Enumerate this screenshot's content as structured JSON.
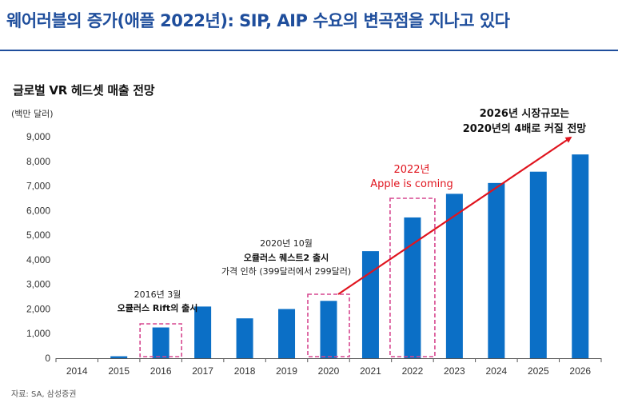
{
  "header": {
    "title": "웨어러블의 증가(애플 2022년): SIP, AIP 수요의 변곡점을 지나고 있다"
  },
  "chart_data": {
    "type": "bar",
    "title": "글로벌 VR 헤드셋 매출 전망",
    "unit": "(백만 달러)",
    "categories": [
      "2014",
      "2015",
      "2016",
      "2017",
      "2018",
      "2019",
      "2020",
      "2021",
      "2022",
      "2023",
      "2024",
      "2025",
      "2026"
    ],
    "values": [
      0,
      80,
      1250,
      2100,
      1620,
      2000,
      2330,
      4350,
      5720,
      6680,
      7120,
      7580,
      8280
    ],
    "ylim": [
      0,
      9000
    ],
    "yticks": [
      "0",
      "1,000",
      "2,000",
      "3,000",
      "4,000",
      "5,000",
      "6,000",
      "7,000",
      "8,000",
      "9,000"
    ],
    "bar_color": "#0b6fc6",
    "annotations": {
      "rift": {
        "line1": "2016년 3월",
        "line2": "오큘러스 Rift의 출시",
        "category": "2016"
      },
      "quest2": {
        "line1": "2020년 10월",
        "line2": "오큘러스 퀘스트2 출시",
        "line3": "가격 인하 (399달러에서 299달러)",
        "category": "2020"
      },
      "apple": {
        "line1": "2022년",
        "line2": "Apple is coming",
        "category": "2022",
        "color": "#e0141e"
      },
      "outlook": {
        "line1": "2026년 시장규모는",
        "line2": "2020년의 4배로 커질 전망"
      }
    }
  },
  "footer": {
    "source": "자료: SA, 삼성증권"
  }
}
